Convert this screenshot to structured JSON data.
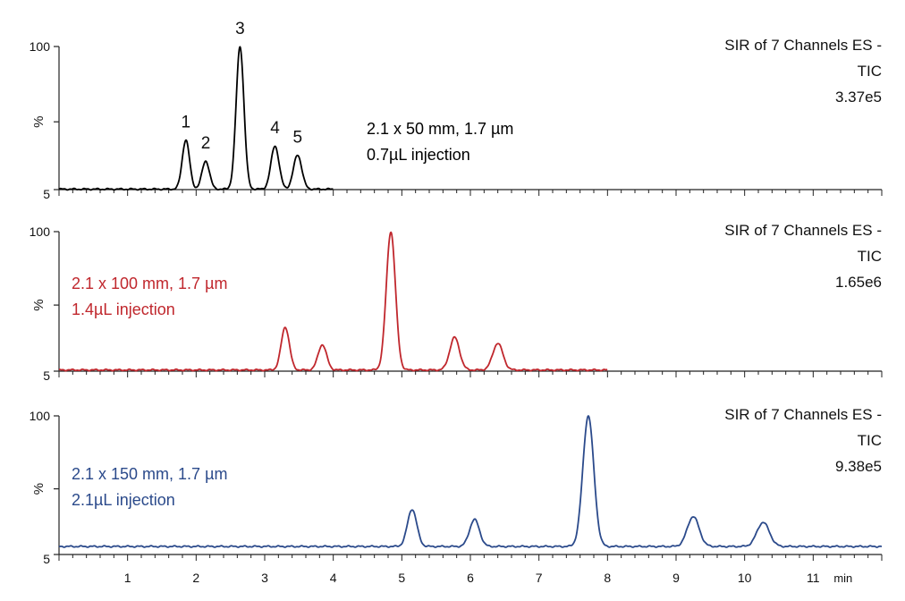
{
  "chart_data": {
    "type": "line",
    "x_axis": {
      "min": 0,
      "max": 12,
      "ticks": [
        1,
        2,
        3,
        4,
        5,
        6,
        7,
        8,
        9,
        10,
        11
      ],
      "tick_labels": [
        "1",
        "2",
        "3",
        "4",
        "5",
        "6",
        "7",
        "8",
        "9",
        "10",
        "11"
      ],
      "unit": "min"
    },
    "y_axis": {
      "min": 5,
      "max": 100,
      "label": "%",
      "tick_labels": [
        "100",
        "5"
      ]
    },
    "panels": [
      {
        "color": "#000000",
        "column": "2.1 x 50 mm, 1.7 µm",
        "injection": "0.7µL injection",
        "info": [
          "SIR of 7 Channels ES -",
          "TIC",
          "3.37e5"
        ],
        "trace_end": 4.0,
        "baseline": 5.3,
        "peaks": [
          {
            "label": "1",
            "rt": 1.85,
            "height": 38
          },
          {
            "label": "2",
            "rt": 2.14,
            "height": 24
          },
          {
            "label": "3",
            "rt": 2.64,
            "height": 100
          },
          {
            "label": "4",
            "rt": 3.15,
            "height": 34
          },
          {
            "label": "5",
            "rt": 3.48,
            "height": 28
          }
        ]
      },
      {
        "color": "#c0272d",
        "column": "2.1 x 100 mm, 1.7 µm",
        "injection": "1.4µL injection",
        "info": [
          "SIR of 7 Channels ES -",
          "TIC",
          "1.65e6"
        ],
        "trace_end": 8.0,
        "baseline": 5.8,
        "peaks": [
          {
            "rt": 3.3,
            "height": 35
          },
          {
            "rt": 3.84,
            "height": 23
          },
          {
            "rt": 4.84,
            "height": 100
          },
          {
            "rt": 5.77,
            "height": 28
          },
          {
            "rt": 6.4,
            "height": 24
          }
        ]
      },
      {
        "color": "#2b4a8b",
        "column": "2.1 x 150 mm, 1.7 µm",
        "injection": "2.1µL injection",
        "info": [
          "SIR of 7 Channels ES -",
          "TIC",
          "9.38e5"
        ],
        "trace_end": 12.0,
        "baseline": 10.5,
        "peaks": [
          {
            "rt": 5.15,
            "height": 36
          },
          {
            "rt": 6.06,
            "height": 29
          },
          {
            "rt": 7.72,
            "height": 100
          },
          {
            "rt": 9.25,
            "height": 31
          },
          {
            "rt": 10.27,
            "height": 27
          }
        ]
      }
    ]
  }
}
